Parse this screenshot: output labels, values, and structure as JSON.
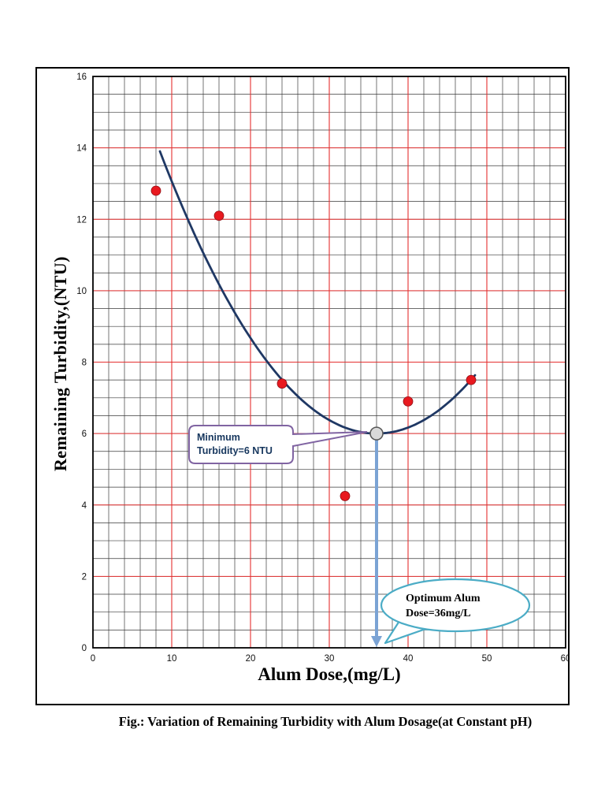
{
  "caption": "Fig.: Variation of Remaining Turbidity with Alum Dosage(at Constant pH)",
  "chart_data": {
    "type": "scatter",
    "title": "",
    "xlabel": "Alum Dose,(mg/L)",
    "ylabel": "Remaining Turbidity,(NTU)",
    "xlim": [
      0,
      60
    ],
    "ylim": [
      0,
      16
    ],
    "x_ticks": [
      0,
      10,
      20,
      30,
      40,
      50,
      60
    ],
    "y_ticks": [
      0,
      2,
      4,
      6,
      8,
      10,
      12,
      14,
      16
    ],
    "x_minor_step": 2,
    "y_minor_step": 0.5,
    "grid": {
      "minor_color": "#3a3a3a",
      "major_color": "#e53030",
      "on": true
    },
    "points": {
      "color": "#e8191f",
      "data": [
        [
          8,
          12.8
        ],
        [
          16,
          12.1
        ],
        [
          24,
          7.4
        ],
        [
          32,
          4.25
        ],
        [
          40,
          6.9
        ],
        [
          48,
          7.5
        ]
      ]
    },
    "fit_curve": {
      "shape": "parabola",
      "vertex": [
        36,
        6
      ],
      "coeff": 0.01045,
      "x_start": 8.5,
      "x_end": 48.6,
      "color": "#1f3864"
    },
    "optimum_point": {
      "x": 36,
      "y": 6,
      "fill": "#d9d9d9",
      "stroke": "#595959"
    },
    "drop_arrow": {
      "x": 36,
      "from_y": 6,
      "to_y": 0,
      "color": "#7ba3d4"
    },
    "annotations": [
      {
        "id": "minimum-turbidity",
        "shape": "rect-callout",
        "border_color": "#8064a2",
        "text_color": "#17375e",
        "lines": [
          "Minimum",
          "Turbidity=6 NTU"
        ],
        "points_to": {
          "x": 36,
          "y": 6
        }
      },
      {
        "id": "optimum-dose",
        "shape": "ellipse-callout",
        "border_color": "#4bacc6",
        "text_color": "#000000",
        "lines": [
          "Optimum Alum",
          "Dose=36mg/L"
        ],
        "points_to": {
          "x": 36,
          "y": 0
        }
      }
    ]
  }
}
